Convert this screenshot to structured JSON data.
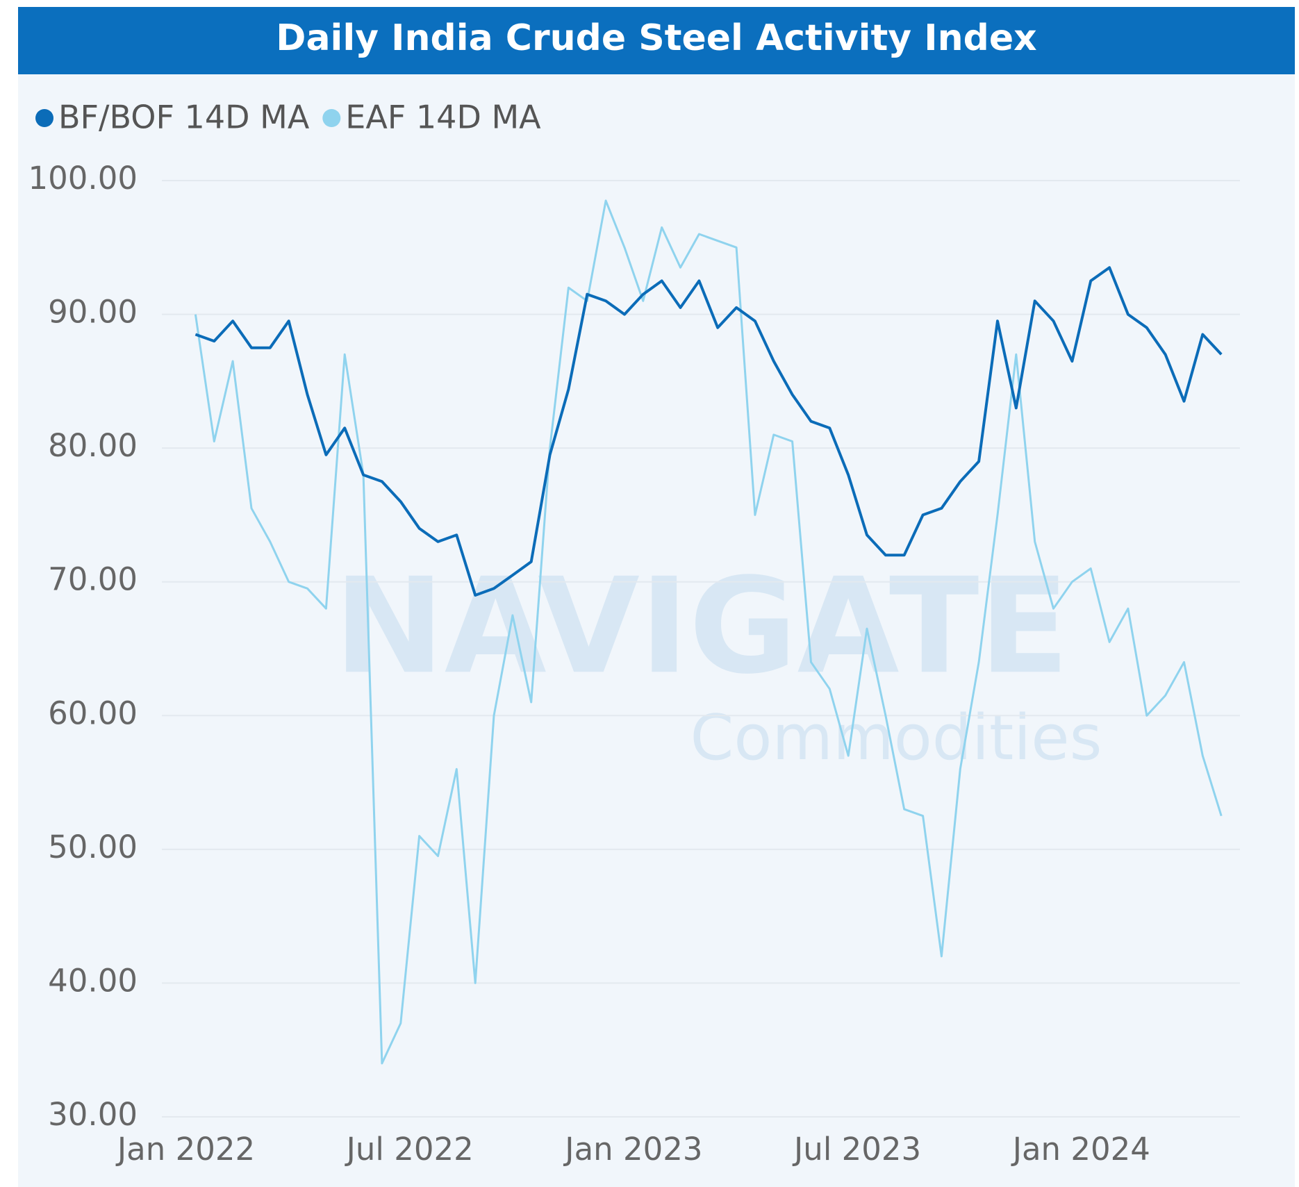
{
  "chart_data": {
    "type": "line",
    "title": "Daily India Crude Steel Activity Index",
    "watermark": {
      "brand": "NAVIGATE",
      "sub": "Commodities"
    },
    "x": [
      "2022-01",
      "2022-01",
      "2022-02",
      "2022-02",
      "2022-03",
      "2022-03",
      "2022-04",
      "2022-04",
      "2022-05",
      "2022-05",
      "2022-06",
      "2022-06",
      "2022-07",
      "2022-07",
      "2022-08",
      "2022-08",
      "2022-09",
      "2022-09",
      "2022-10",
      "2022-10",
      "2022-11",
      "2022-11",
      "2022-12",
      "2022-12",
      "2023-01",
      "2023-01",
      "2023-02",
      "2023-02",
      "2023-03",
      "2023-03",
      "2023-04",
      "2023-04",
      "2023-05",
      "2023-05",
      "2023-06",
      "2023-06",
      "2023-07",
      "2023-07",
      "2023-08",
      "2023-08",
      "2023-09",
      "2023-09",
      "2023-10",
      "2023-10",
      "2023-11",
      "2023-11",
      "2023-12",
      "2023-12",
      "2024-01",
      "2024-01",
      "2024-02",
      "2024-02",
      "2024-03",
      "2024-03",
      "2024-04",
      "2024-04"
    ],
    "series": [
      {
        "name": "BF/BOF 14D MA",
        "color": "#0b6cb8",
        "values": [
          88.5,
          88,
          89.5,
          87.5,
          87.5,
          89.5,
          84,
          79.5,
          81.5,
          78,
          77.5,
          76,
          74,
          73,
          73.5,
          69,
          69.5,
          70.5,
          71.5,
          79.5,
          84.4,
          91.5,
          91,
          90,
          91.5,
          92.5,
          90.5,
          92.5,
          89,
          90.5,
          89.5,
          86.5,
          84,
          82,
          81.5,
          78,
          73.5,
          72,
          72,
          75,
          75.5,
          77.5,
          79,
          89.5,
          83,
          91,
          89.5,
          86.5,
          92.5,
          93.5,
          90,
          89,
          87,
          83.5,
          88.5,
          87
        ]
      },
      {
        "name": "EAF 14D MA",
        "color": "#8fd3ee",
        "values": [
          90,
          80.5,
          86.5,
          75.5,
          73,
          70,
          69.5,
          68,
          87,
          78,
          34,
          37,
          51,
          49.5,
          56,
          40,
          60,
          67.5,
          61,
          80,
          92,
          91,
          98.5,
          95,
          91,
          96.5,
          93.5,
          96,
          95.5,
          95,
          75,
          81,
          80.5,
          64,
          62,
          57,
          66.5,
          60,
          53,
          52.5,
          42,
          56,
          64,
          75,
          87,
          73,
          68,
          70,
          71,
          65.5,
          68,
          60,
          61.5,
          64,
          57,
          52.5
        ]
      }
    ],
    "ylim": [
      30,
      100
    ],
    "yticks": [
      {
        "value": 30,
        "label": "30.00"
      },
      {
        "value": 40,
        "label": "40.00"
      },
      {
        "value": 50,
        "label": "50.00"
      },
      {
        "value": 60,
        "label": "60.00"
      },
      {
        "value": 70,
        "label": "70.00"
      },
      {
        "value": 80,
        "label": "80.00"
      },
      {
        "value": 90,
        "label": "90.00"
      },
      {
        "value": 100,
        "label": "100.00"
      }
    ],
    "xticks": [
      {
        "value": "2022-01",
        "label": "Jan 2022"
      },
      {
        "value": "2022-07",
        "label": "Jul 2022"
      },
      {
        "value": "2023-01",
        "label": "Jan 2023"
      },
      {
        "value": "2023-07",
        "label": "Jul 2023"
      },
      {
        "value": "2024-01",
        "label": "Jan 2024"
      }
    ],
    "grid": true
  }
}
